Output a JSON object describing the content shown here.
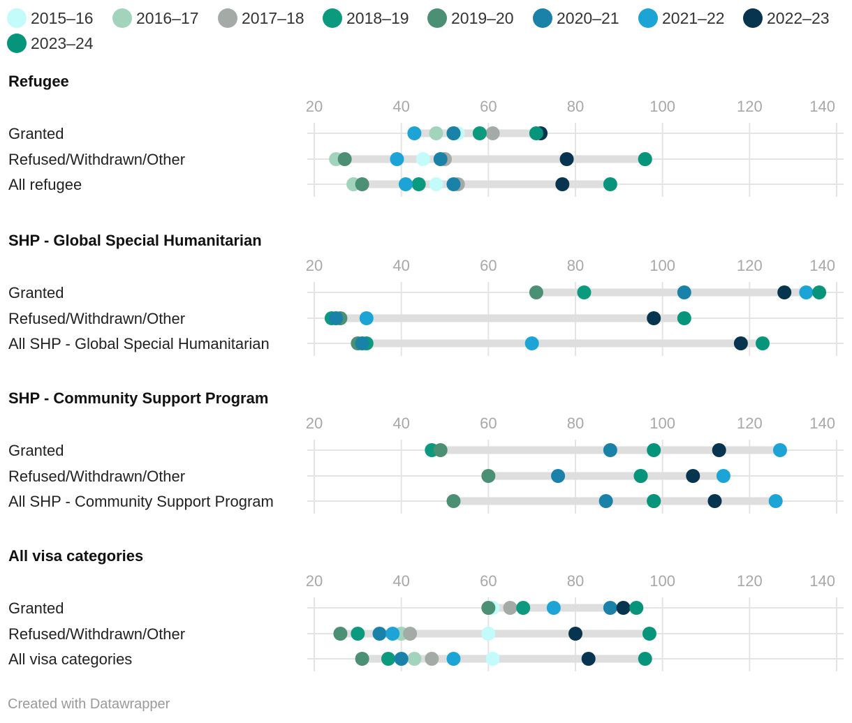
{
  "chart_data": {
    "type": "scatter",
    "subtype": "dot-range",
    "legend_position": "top",
    "x_axis": {
      "range": [
        20,
        140
      ],
      "ticks": [
        20,
        40,
        60,
        80,
        100,
        120,
        140
      ]
    },
    "series": [
      {
        "name": "2015–16",
        "color": "#c3fbfb"
      },
      {
        "name": "2016–17",
        "color": "#a1d3bd"
      },
      {
        "name": "2017–18",
        "color": "#a4aba7"
      },
      {
        "name": "2018–19",
        "color": "#0b9a7e"
      },
      {
        "name": "2019–20",
        "color": "#4b8f74"
      },
      {
        "name": "2020–21",
        "color": "#1a81a8"
      },
      {
        "name": "2021–22",
        "color": "#1da4d6"
      },
      {
        "name": "2022–23",
        "color": "#07344f"
      },
      {
        "name": "2023–24",
        "color": "#06957a"
      }
    ],
    "groups": [
      {
        "title": "Refugee",
        "rows": [
          {
            "label": "Granted",
            "values": [
              53,
              48,
              61,
              58,
              52,
              52,
              43,
              72,
              71
            ]
          },
          {
            "label": "Refused/Withdrawn/Other",
            "values": [
              45,
              25,
              50,
              96,
              27,
              49,
              39,
              78,
              96
            ]
          },
          {
            "label": "All refugee",
            "values": [
              48,
              29,
              53,
              44,
              31,
              52,
              41,
              77,
              88
            ]
          }
        ]
      },
      {
        "title": "SHP - Global Special Humanitarian",
        "rows": [
          {
            "label": "Granted",
            "values": [
              null,
              null,
              null,
              82,
              71,
              105,
              133,
              128,
              136
            ]
          },
          {
            "label": "Refused/Withdrawn/Other",
            "values": [
              null,
              null,
              null,
              24,
              26,
              25,
              32,
              98,
              105
            ]
          },
          {
            "label": "All SHP - Global Special Humanitarian",
            "values": [
              null,
              null,
              null,
              32,
              30,
              31,
              70,
              118,
              123
            ]
          }
        ]
      },
      {
        "title": "SHP - Community Support Program",
        "rows": [
          {
            "label": "Granted",
            "values": [
              null,
              null,
              null,
              47,
              49,
              88,
              127,
              113,
              98
            ]
          },
          {
            "label": "Refused/Withdrawn/Other",
            "values": [
              null,
              null,
              null,
              95,
              60,
              76,
              114,
              107,
              95
            ]
          },
          {
            "label": "All SHP - Community Support Program",
            "values": [
              null,
              null,
              null,
              98,
              52,
              87,
              126,
              112,
              98
            ]
          }
        ]
      },
      {
        "title": "All visa categories",
        "rows": [
          {
            "label": "Granted",
            "values": [
              61,
              60,
              65,
              68,
              60,
              88,
              75,
              91,
              94
            ]
          },
          {
            "label": "Refused/Withdrawn/Other",
            "values": [
              60,
              40,
              42,
              30,
              26,
              35,
              38,
              80,
              97
            ]
          },
          {
            "label": "All visa categories",
            "values": [
              61,
              43,
              47,
              37,
              31,
              40,
              52,
              83,
              96
            ]
          }
        ]
      }
    ]
  },
  "footer": {
    "credit": "Created with Datawrapper"
  }
}
